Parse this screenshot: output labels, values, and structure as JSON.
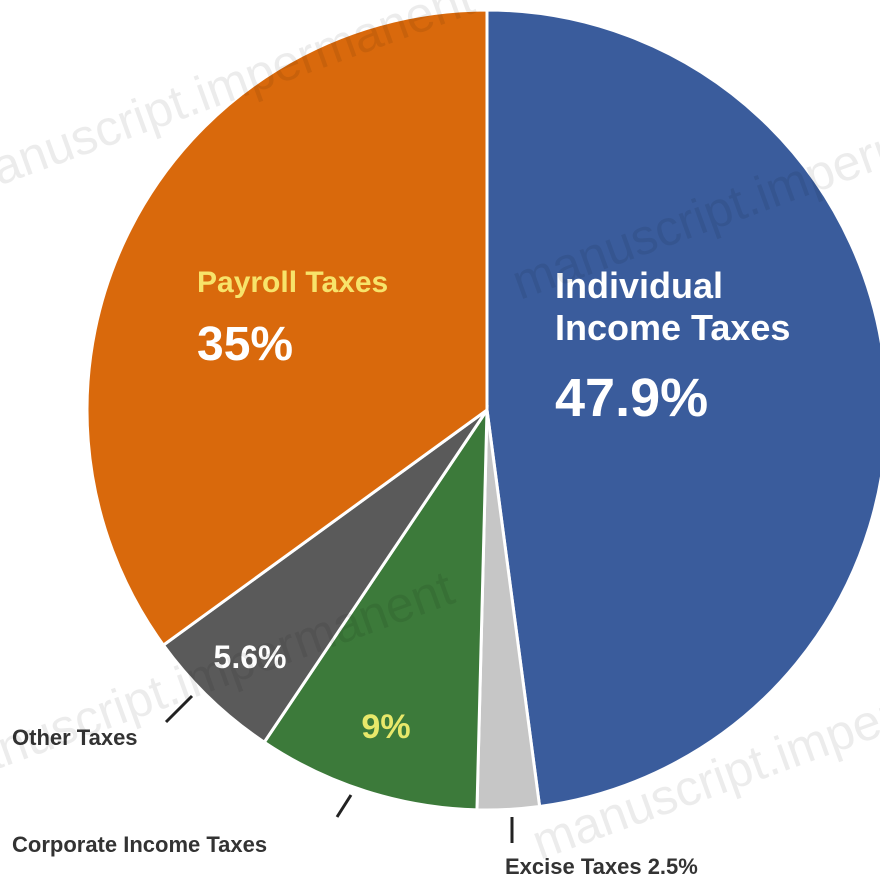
{
  "chart_data": {
    "type": "pie",
    "title": "",
    "slices": [
      {
        "name": "Individual Income Taxes",
        "name_lines": [
          "Individual",
          "Income Taxes"
        ],
        "value": 47.9,
        "value_label": "47.9%",
        "color": "#3a5c9c"
      },
      {
        "name": "Excise Taxes",
        "name_lines": [],
        "value": 2.5,
        "value_label": "",
        "color": "#c6c6c6"
      },
      {
        "name": "Corporate Income Taxes",
        "name_lines": [],
        "value": 9,
        "value_label": "9%",
        "color": "#3c7a3a"
      },
      {
        "name": "Other Taxes",
        "name_lines": [],
        "value": 5.6,
        "value_label": "5.6%",
        "color": "#5a5a5a"
      },
      {
        "name": "Payroll Taxes",
        "name_lines": [
          "Payroll Taxes"
        ],
        "value": 35,
        "value_label": "35%",
        "color": "#d9690c"
      }
    ],
    "external_labels": {
      "other": "Other Taxes",
      "corporate": "Corporate Income Taxes",
      "excise": "Excise Taxes 2.5%"
    },
    "watermark": "manuscript.impermanent"
  }
}
